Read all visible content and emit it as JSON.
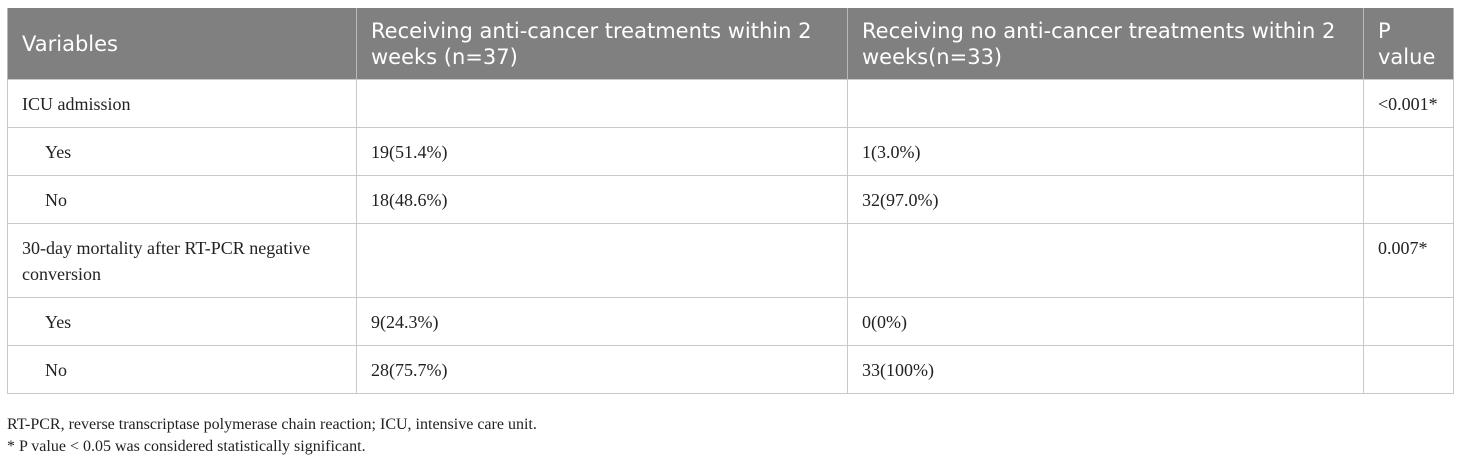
{
  "table": {
    "headers": [
      "Variables",
      "Receiving anti-cancer treatments within 2 weeks (n=37)",
      "Receiving no anti-cancer treatments within 2 weeks(n=33)",
      "P value"
    ],
    "rows": [
      {
        "variable": "ICU admission",
        "treated": "",
        "untreated": "",
        "p": "<0.001*"
      },
      {
        "variable": "Yes",
        "treated": "19(51.4%)",
        "untreated": "1(3.0%)",
        "p": ""
      },
      {
        "variable": "No",
        "treated": "18(48.6%)",
        "untreated": "32(97.0%)",
        "p": ""
      },
      {
        "variable": "30-day mortality after RT-PCR negative conversion",
        "treated": "",
        "untreated": "",
        "p": "0.007*"
      },
      {
        "variable": "Yes",
        "treated": "9(24.3%)",
        "untreated": "0(0%)",
        "p": ""
      },
      {
        "variable": "No",
        "treated": "28(75.7%)",
        "untreated": "33(100%)",
        "p": ""
      }
    ]
  },
  "footnotes": [
    "RT-PCR, reverse transcriptase polymerase chain reaction; ICU, intensive care unit.",
    "* P value < 0.05 was considered statistically significant."
  ]
}
